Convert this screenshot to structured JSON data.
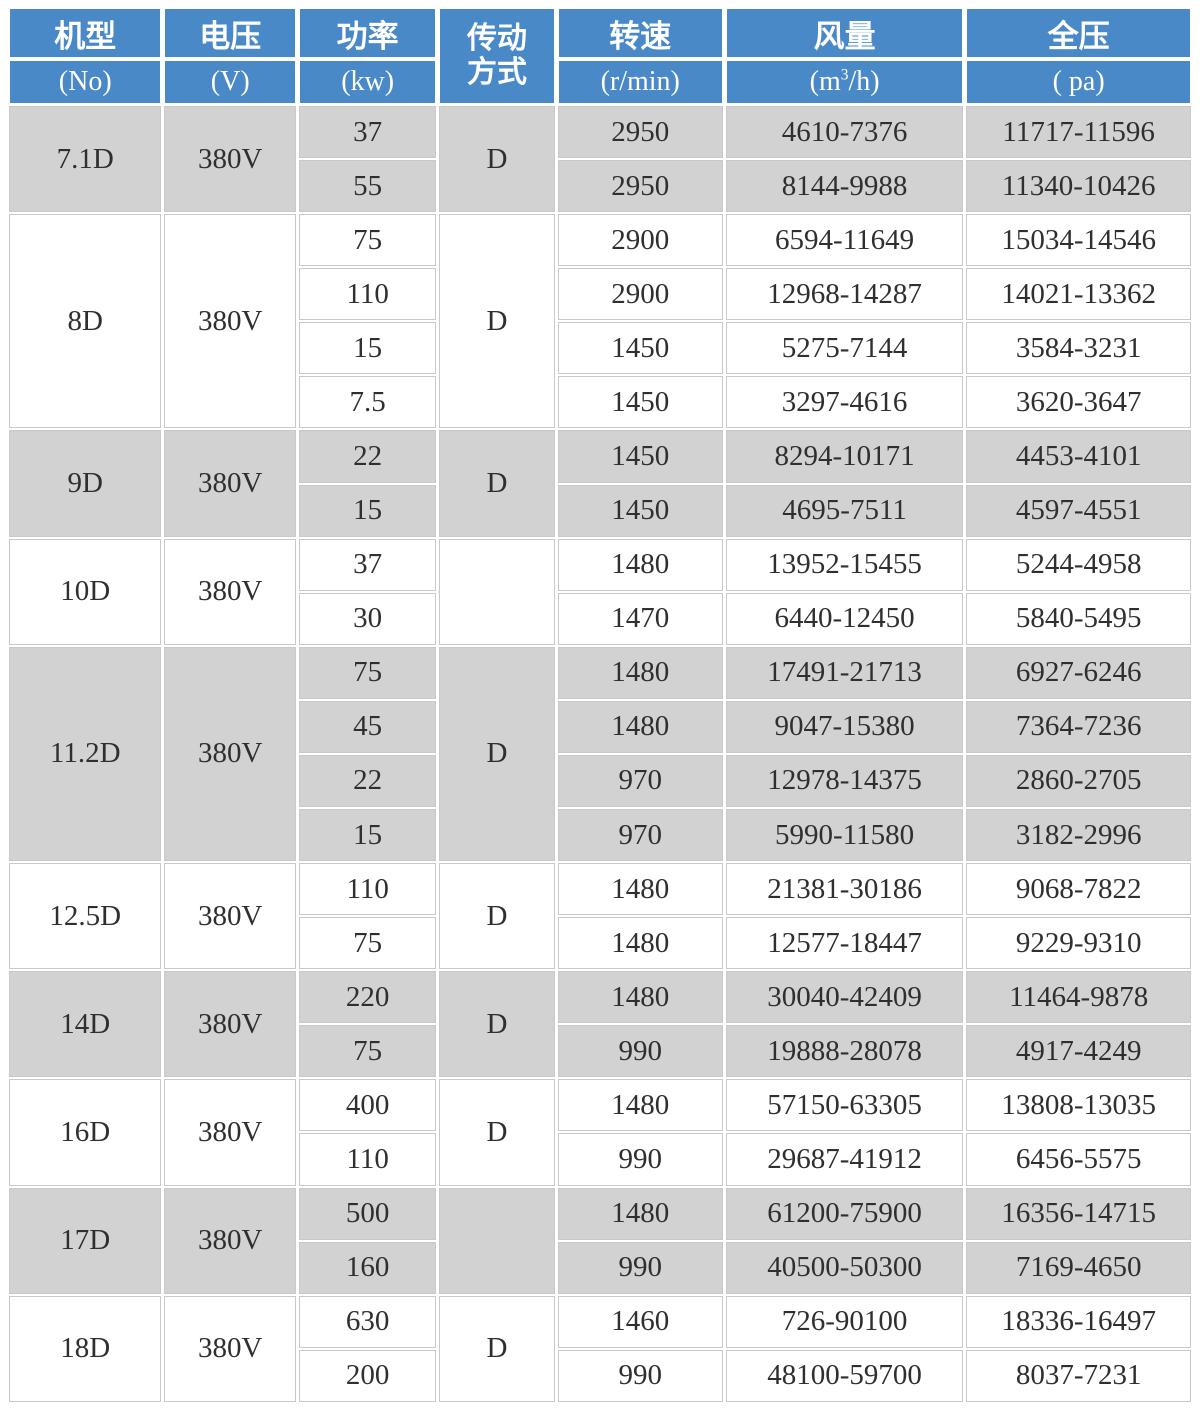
{
  "header": {
    "columns": [
      {
        "title": "机型",
        "unit": "(No)"
      },
      {
        "title": "电压",
        "unit": "(V)"
      },
      {
        "title": "功率",
        "unit": "(kw)"
      },
      {
        "title_line1": "传动",
        "title_line2": "方式"
      },
      {
        "title": "转速",
        "unit": "(r/min)"
      },
      {
        "title": "风量",
        "unit_prefix": "(m",
        "unit_sup": "3",
        "unit_suffix": "/h)"
      },
      {
        "title": "全压",
        "unit": "( pa)"
      }
    ]
  },
  "groups": [
    {
      "model": "7.1D",
      "voltage": "380V",
      "transmission": "D",
      "rows": [
        {
          "power": "37",
          "speed": "2950",
          "airflow": "4610-7376",
          "pressure": "11717-11596"
        },
        {
          "power": "55",
          "speed": "2950",
          "airflow": "8144-9988",
          "pressure": "11340-10426"
        }
      ]
    },
    {
      "model": "8D",
      "voltage": "380V",
      "transmission": "D",
      "rows": [
        {
          "power": "75",
          "speed": "2900",
          "airflow": "6594-11649",
          "pressure": "15034-14546"
        },
        {
          "power": "110",
          "speed": "2900",
          "airflow": "12968-14287",
          "pressure": "14021-13362"
        },
        {
          "power": "15",
          "speed": "1450",
          "airflow": "5275-7144",
          "pressure": "3584-3231"
        },
        {
          "power": "7.5",
          "speed": "1450",
          "airflow": "3297-4616",
          "pressure": "3620-3647"
        }
      ]
    },
    {
      "model": "9D",
      "voltage": "380V",
      "transmission": "D",
      "rows": [
        {
          "power": "22",
          "speed": "1450",
          "airflow": "8294-10171",
          "pressure": "4453-4101"
        },
        {
          "power": "15",
          "speed": "1450",
          "airflow": "4695-7511",
          "pressure": "4597-4551"
        }
      ]
    },
    {
      "model": "10D",
      "voltage": "380V",
      "transmission": "",
      "rows": [
        {
          "power": "37",
          "speed": "1480",
          "airflow": "13952-15455",
          "pressure": "5244-4958"
        },
        {
          "power": "30",
          "speed": "1470",
          "airflow": "6440-12450",
          "pressure": "5840-5495"
        }
      ]
    },
    {
      "model": "11.2D",
      "voltage": "380V",
      "transmission": "D",
      "rows": [
        {
          "power": "75",
          "speed": "1480",
          "airflow": "17491-21713",
          "pressure": "6927-6246"
        },
        {
          "power": "45",
          "speed": "1480",
          "airflow": "9047-15380",
          "pressure": "7364-7236"
        },
        {
          "power": "22",
          "speed": "970",
          "airflow": "12978-14375",
          "pressure": "2860-2705"
        },
        {
          "power": "15",
          "speed": "970",
          "airflow": "5990-11580",
          "pressure": "3182-2996"
        }
      ]
    },
    {
      "model": "12.5D",
      "voltage": "380V",
      "transmission": "D",
      "rows": [
        {
          "power": "110",
          "speed": "1480",
          "airflow": "21381-30186",
          "pressure": "9068-7822"
        },
        {
          "power": "75",
          "speed": "1480",
          "airflow": "12577-18447",
          "pressure": "9229-9310"
        }
      ]
    },
    {
      "model": "14D",
      "voltage": "380V",
      "transmission": "D",
      "rows": [
        {
          "power": "220",
          "speed": "1480",
          "airflow": "30040-42409",
          "pressure": "11464-9878"
        },
        {
          "power": "75",
          "speed": "990",
          "airflow": "19888-28078",
          "pressure": "4917-4249"
        }
      ]
    },
    {
      "model": "16D",
      "voltage": "380V",
      "transmission": "D",
      "rows": [
        {
          "power": "400",
          "speed": "1480",
          "airflow": "57150-63305",
          "pressure": "13808-13035"
        },
        {
          "power": "110",
          "speed": "990",
          "airflow": "29687-41912",
          "pressure": "6456-5575"
        }
      ]
    },
    {
      "model": "17D",
      "voltage": "380V",
      "transmission": "",
      "rows": [
        {
          "power": "500",
          "speed": "1480",
          "airflow": "61200-75900",
          "pressure": "16356-14715"
        },
        {
          "power": "160",
          "speed": "990",
          "airflow": "40500-50300",
          "pressure": "7169-4650"
        }
      ]
    },
    {
      "model": "18D",
      "voltage": "380V",
      "transmission": "D",
      "rows": [
        {
          "power": "630",
          "speed": "1460",
          "airflow": "726-90100",
          "pressure": "18336-16497"
        },
        {
          "power": "200",
          "speed": "990",
          "airflow": "48100-59700",
          "pressure": "8037-7231"
        }
      ]
    }
  ],
  "colors": {
    "header_bg": "#4a89c8",
    "header_text": "#ffffff",
    "row_gray": "#d2d2d2",
    "row_white": "#ffffff",
    "grid_line": "#c9c9c9",
    "body_text": "#2f2f2f"
  }
}
